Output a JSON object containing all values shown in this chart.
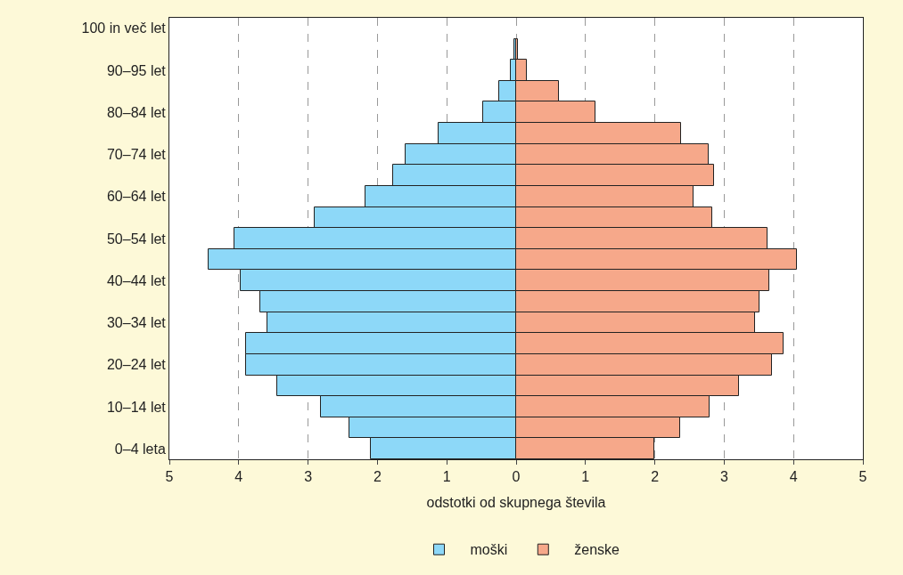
{
  "chart_data": {
    "type": "bar",
    "orientation": "horizontal",
    "xlabel": "odstotki od skupnega števila",
    "categories": [
      "100 in več let",
      null,
      "90–95 let",
      null,
      "80–84 let",
      null,
      "70–74 let",
      null,
      "60–64 let",
      null,
      "50–54 let",
      null,
      "40–44 let",
      null,
      "30–34 let",
      null,
      "20–24 let",
      null,
      "10–14 let",
      null,
      "0–4 leta"
    ],
    "series": [
      {
        "name": "moški",
        "color": "#8dd8f8",
        "values": [
          null,
          -0.02,
          -0.08,
          -0.24,
          -0.47,
          -1.12,
          -1.6,
          -1.78,
          -2.17,
          -2.91,
          -4.06,
          -4.44,
          -3.97,
          -3.69,
          -3.58,
          -3.9,
          -3.9,
          -3.45,
          -2.81,
          -2.4,
          -2.1
        ]
      },
      {
        "name": "ženske",
        "color": "#f6a88a",
        "values": [
          null,
          0.02,
          0.15,
          0.62,
          1.15,
          2.38,
          2.77,
          2.85,
          2.56,
          2.83,
          3.62,
          4.05,
          3.65,
          3.51,
          3.45,
          3.85,
          3.69,
          3.21,
          2.79,
          2.36,
          1.99
        ]
      }
    ],
    "xlim": [
      -5,
      5
    ],
    "xticks": [
      {
        "value": -5,
        "label": "5"
      },
      {
        "value": -4,
        "label": "4"
      },
      {
        "value": -3,
        "label": "3"
      },
      {
        "value": -2,
        "label": "2"
      },
      {
        "value": -1,
        "label": "1"
      },
      0,
      1,
      2,
      3,
      4,
      5
    ],
    "grid": "x",
    "legend": "bottom",
    "stacked": true
  }
}
